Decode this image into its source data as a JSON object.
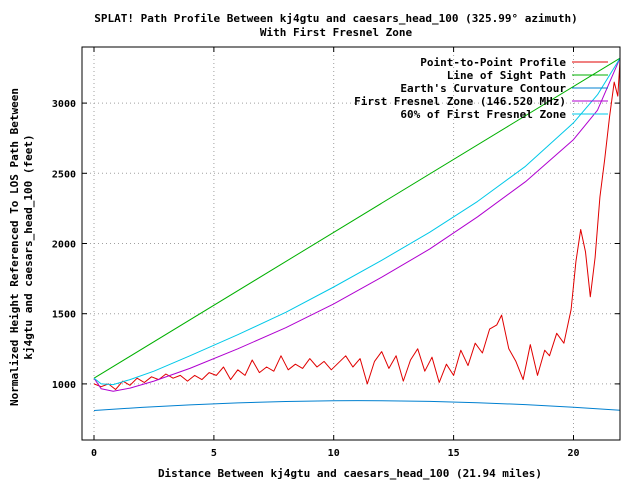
{
  "chart_data": {
    "type": "line",
    "title": "SPLAT! Path Profile Between kj4gtu and caesars_head_100 (325.99° azimuth)",
    "subtitle": "With First Fresnel Zone",
    "xlabel": "Distance Between kj4gtu and caesars_head_100 (21.94 miles)",
    "ylabel_line1": "Normalized Height Referenced To LOS Path Between",
    "ylabel_line2": "kj4gtu and caesars_head_100 (feet)",
    "xlim": [
      -0.5,
      21.94
    ],
    "ylim": [
      600,
      3400
    ],
    "x_ticks": [
      0,
      5,
      10,
      15,
      20
    ],
    "y_ticks": [
      1000,
      1500,
      2000,
      2500,
      3000
    ],
    "grid": true,
    "legend_position": "top-right",
    "series": [
      {
        "name": "Point-to-Point Profile",
        "color": "#e00000",
        "x": [
          0,
          0.3,
          0.6,
          0.9,
          1.2,
          1.5,
          1.8,
          2.1,
          2.4,
          2.7,
          3.0,
          3.3,
          3.6,
          3.9,
          4.2,
          4.5,
          4.8,
          5.1,
          5.4,
          5.7,
          6.0,
          6.3,
          6.6,
          6.9,
          7.2,
          7.5,
          7.8,
          8.1,
          8.4,
          8.7,
          9.0,
          9.3,
          9.6,
          9.9,
          10.2,
          10.5,
          10.8,
          11.1,
          11.4,
          11.7,
          12.0,
          12.3,
          12.6,
          12.9,
          13.2,
          13.5,
          13.8,
          14.1,
          14.4,
          14.7,
          15.0,
          15.3,
          15.6,
          15.9,
          16.2,
          16.5,
          16.8,
          17.0,
          17.3,
          17.6,
          17.9,
          18.2,
          18.5,
          18.8,
          19.0,
          19.3,
          19.6,
          19.9,
          20.1,
          20.3,
          20.5,
          20.7,
          20.9,
          21.1,
          21.3,
          21.5,
          21.7,
          21.85,
          21.94
        ],
        "values": [
          1000,
          980,
          1000,
          960,
          1020,
          990,
          1040,
          1010,
          1050,
          1030,
          1070,
          1040,
          1060,
          1020,
          1060,
          1030,
          1080,
          1060,
          1120,
          1030,
          1100,
          1060,
          1170,
          1080,
          1120,
          1090,
          1200,
          1100,
          1140,
          1110,
          1180,
          1120,
          1160,
          1100,
          1150,
          1200,
          1120,
          1180,
          1000,
          1160,
          1230,
          1110,
          1200,
          1020,
          1170,
          1250,
          1090,
          1190,
          1010,
          1140,
          1060,
          1240,
          1130,
          1290,
          1220,
          1390,
          1420,
          1490,
          1250,
          1160,
          1030,
          1280,
          1060,
          1240,
          1200,
          1360,
          1290,
          1530,
          1870,
          2100,
          1940,
          1620,
          1900,
          2330,
          2600,
          2900,
          3150,
          3050,
          3300
        ]
      },
      {
        "name": "Line of Sight Path",
        "color": "#00b000",
        "x": [
          0,
          21.94
        ],
        "values": [
          1040,
          3320
        ]
      },
      {
        "name": "Earth's Curvature Contour",
        "color": "#0080d0",
        "x": [
          0,
          2,
          4,
          6,
          8,
          10,
          11,
          12,
          14,
          16,
          18,
          20,
          21.94
        ],
        "values": [
          810,
          832,
          850,
          864,
          874,
          880,
          881,
          880,
          875,
          866,
          852,
          834,
          812
        ]
      },
      {
        "name": "First Fresnel Zone (146.520 MHz)",
        "color": "#b000d0",
        "x": [
          0,
          0.3,
          0.8,
          1.5,
          2.5,
          4,
          6,
          8,
          10,
          12,
          14,
          16,
          18,
          20,
          21,
          21.94
        ],
        "values": [
          1040,
          965,
          948,
          970,
          1020,
          1110,
          1250,
          1400,
          1570,
          1760,
          1960,
          2190,
          2440,
          2740,
          2950,
          3320
        ]
      },
      {
        "name": "60% of First Fresnel Zone",
        "color": "#00c8e8",
        "x": [
          0,
          0.3,
          0.8,
          1.5,
          2.5,
          4,
          6,
          8,
          10,
          12,
          14,
          16,
          18,
          20,
          21,
          21.94
        ],
        "values": [
          1040,
          1000,
          995,
          1030,
          1090,
          1200,
          1350,
          1510,
          1690,
          1880,
          2080,
          2300,
          2550,
          2860,
          3060,
          3320
        ]
      }
    ]
  }
}
